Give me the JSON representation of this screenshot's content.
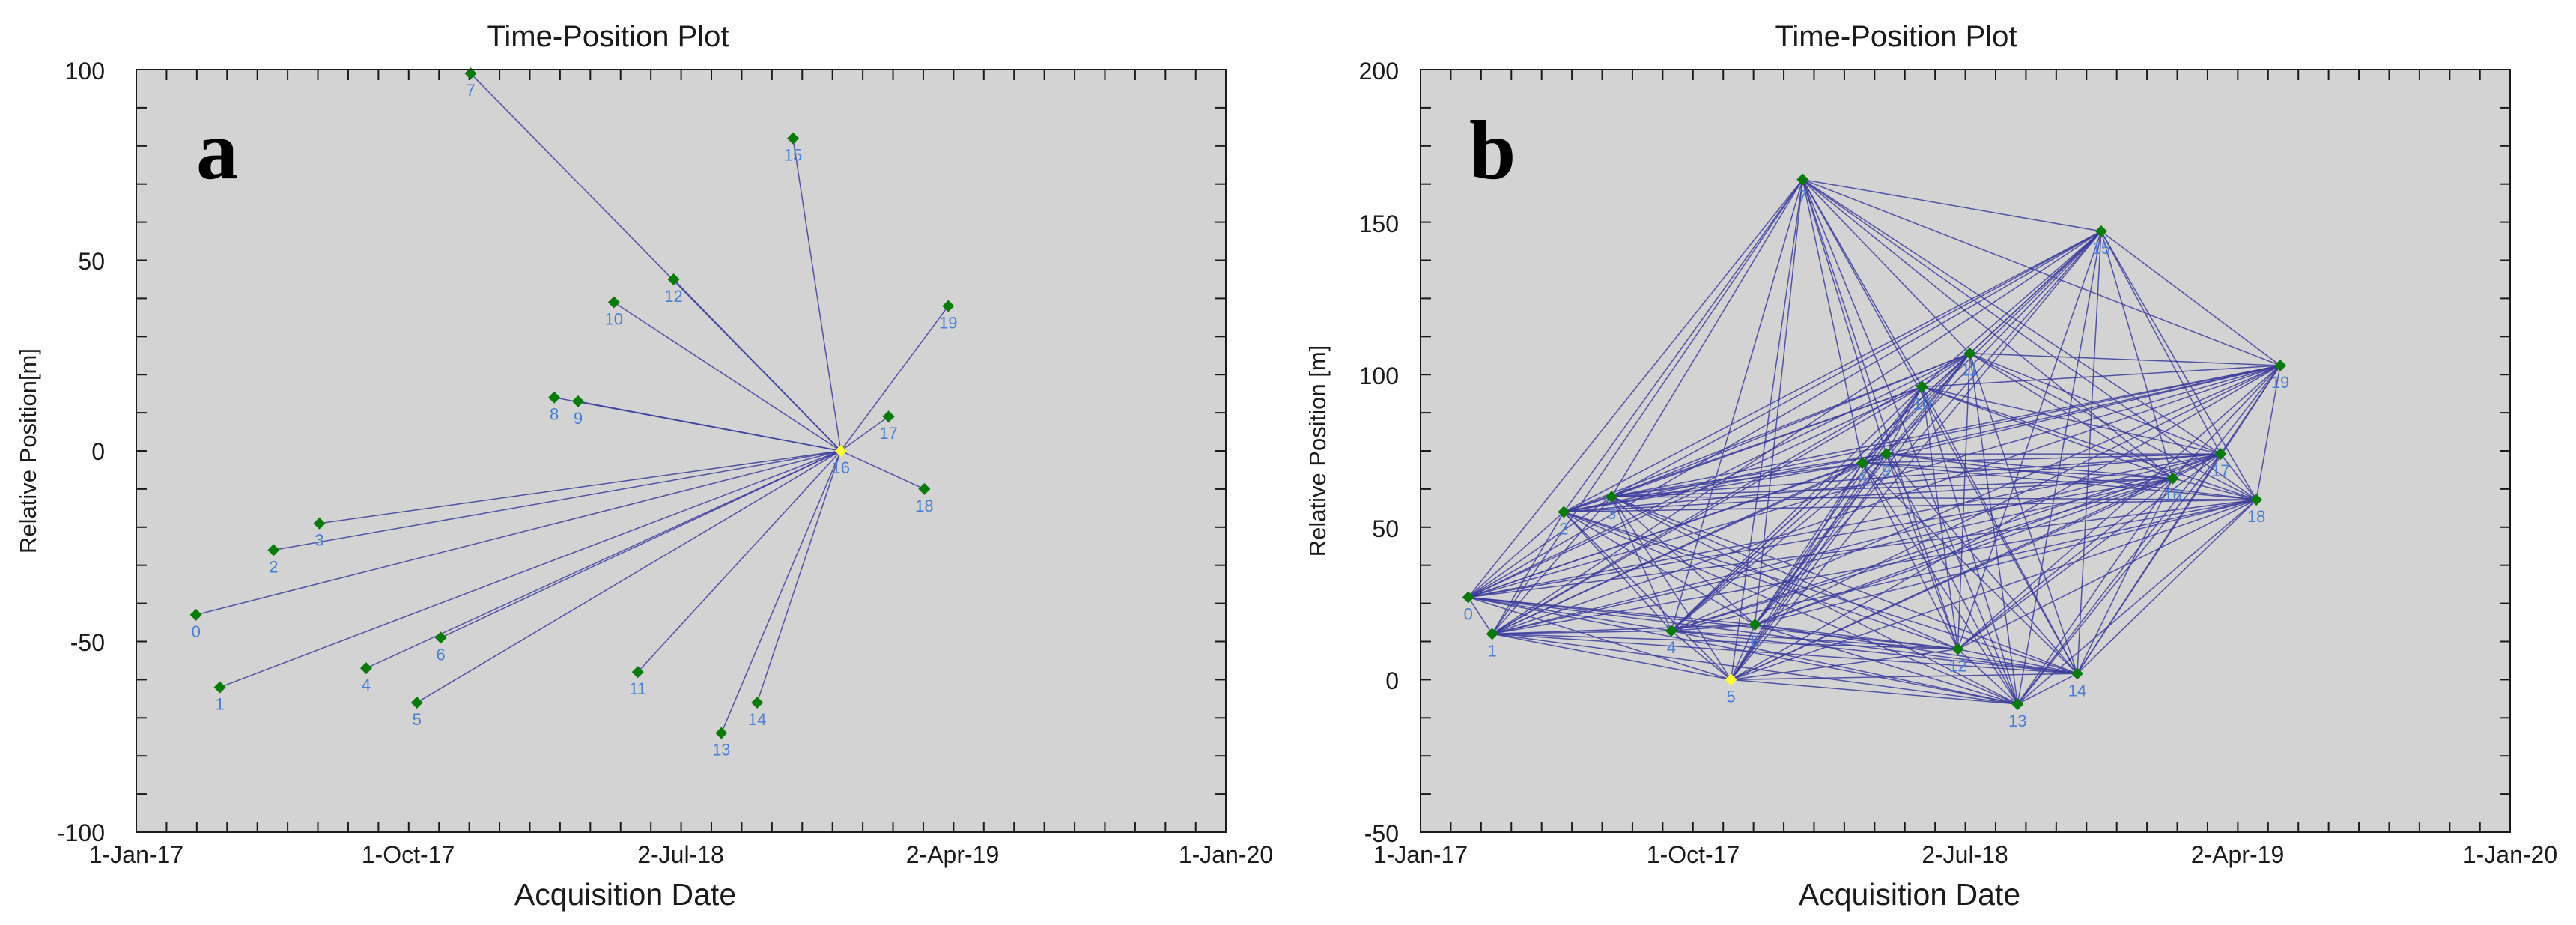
{
  "colors": {
    "plot_bg": "#d3d3d3",
    "line": "#3b3b9c",
    "marker": "#0a7a0a",
    "marker_ref": "#ffff33",
    "point_label": "#4a7fd4",
    "axis": "#1a1a1a"
  },
  "chart_data": [
    {
      "type": "scatter",
      "panel_letter": "a",
      "title": "Time-Position Plot",
      "xlabel": "Acquisition Date",
      "ylabel": "Relative Position[m]",
      "x_ticks": [
        "1-Jan-17",
        "1-Oct-17",
        "2-Jul-18",
        "2-Apr-19",
        "1-Jan-20"
      ],
      "y_ticks": [
        "100",
        "50",
        "0",
        "-50",
        "-100"
      ],
      "xlim": [
        0,
        1095
      ],
      "ylim": [
        -100,
        100
      ],
      "x_unit": "days since 1-Jan-17",
      "reference": "16",
      "points": [
        {
          "id": "0",
          "x": 60,
          "y": -43
        },
        {
          "id": "1",
          "x": 84,
          "y": -62
        },
        {
          "id": "2",
          "x": 138,
          "y": -26
        },
        {
          "id": "3",
          "x": 184,
          "y": -19
        },
        {
          "id": "4",
          "x": 231,
          "y": -57
        },
        {
          "id": "5",
          "x": 282,
          "y": -66
        },
        {
          "id": "6",
          "x": 306,
          "y": -49
        },
        {
          "id": "7",
          "x": 336,
          "y": 99
        },
        {
          "id": "8",
          "x": 420,
          "y": 14
        },
        {
          "id": "9",
          "x": 444,
          "y": 13
        },
        {
          "id": "10",
          "x": 480,
          "y": 39
        },
        {
          "id": "11",
          "x": 504,
          "y": -58
        },
        {
          "id": "12",
          "x": 540,
          "y": 45
        },
        {
          "id": "13",
          "x": 588,
          "y": -74
        },
        {
          "id": "14",
          "x": 624,
          "y": -66
        },
        {
          "id": "15",
          "x": 660,
          "y": 82
        },
        {
          "id": "16",
          "x": 708,
          "y": 0
        },
        {
          "id": "17",
          "x": 756,
          "y": 9
        },
        {
          "id": "18",
          "x": 792,
          "y": -10
        },
        {
          "id": "19",
          "x": 816,
          "y": 38
        }
      ],
      "edges": [
        [
          "16",
          "0"
        ],
        [
          "16",
          "1"
        ],
        [
          "16",
          "2"
        ],
        [
          "16",
          "3"
        ],
        [
          "16",
          "4"
        ],
        [
          "16",
          "5"
        ],
        [
          "16",
          "6"
        ],
        [
          "16",
          "7"
        ],
        [
          "16",
          "8"
        ],
        [
          "16",
          "9"
        ],
        [
          "16",
          "10"
        ],
        [
          "16",
          "11"
        ],
        [
          "16",
          "12"
        ],
        [
          "16",
          "13"
        ],
        [
          "16",
          "14"
        ],
        [
          "16",
          "15"
        ],
        [
          "16",
          "17"
        ],
        [
          "16",
          "18"
        ],
        [
          "16",
          "19"
        ]
      ]
    },
    {
      "type": "scatter",
      "panel_letter": "b",
      "title": "Time-Position Plot",
      "xlabel": "Acquisition Date",
      "ylabel": "Relative Position [m]",
      "x_ticks": [
        "1-Jan-17",
        "1-Oct-17",
        "2-Jul-18",
        "2-Apr-19",
        "1-Jan-20"
      ],
      "y_ticks": [
        "200",
        "150",
        "100",
        "50",
        "0",
        "-50"
      ],
      "xlim": [
        0,
        1095
      ],
      "ylim": [
        -50,
        200
      ],
      "x_unit": "days since 1-Jan-17",
      "reference": "5",
      "points": [
        {
          "id": "0",
          "x": 48,
          "y": 27
        },
        {
          "id": "1",
          "x": 72,
          "y": 15
        },
        {
          "id": "2",
          "x": 144,
          "y": 55
        },
        {
          "id": "3",
          "x": 192,
          "y": 60
        },
        {
          "id": "4",
          "x": 252,
          "y": 16
        },
        {
          "id": "5",
          "x": 312,
          "y": 0
        },
        {
          "id": "6",
          "x": 336,
          "y": 18
        },
        {
          "id": "7",
          "x": 384,
          "y": 164
        },
        {
          "id": "8",
          "x": 444,
          "y": 71
        },
        {
          "id": "9",
          "x": 468,
          "y": 74
        },
        {
          "id": "10",
          "x": 504,
          "y": 96
        },
        {
          "id": "11",
          "x": 552,
          "y": 107
        },
        {
          "id": "12",
          "x": 540,
          "y": 10
        },
        {
          "id": "13",
          "x": 600,
          "y": -8
        },
        {
          "id": "14",
          "x": 660,
          "y": 2
        },
        {
          "id": "15",
          "x": 684,
          "y": 147
        },
        {
          "id": "16",
          "x": 756,
          "y": 66
        },
        {
          "id": "17",
          "x": 804,
          "y": 74
        },
        {
          "id": "18",
          "x": 840,
          "y": 59
        },
        {
          "id": "19",
          "x": 864,
          "y": 103
        }
      ],
      "edges_complete_graph": true
    }
  ]
}
